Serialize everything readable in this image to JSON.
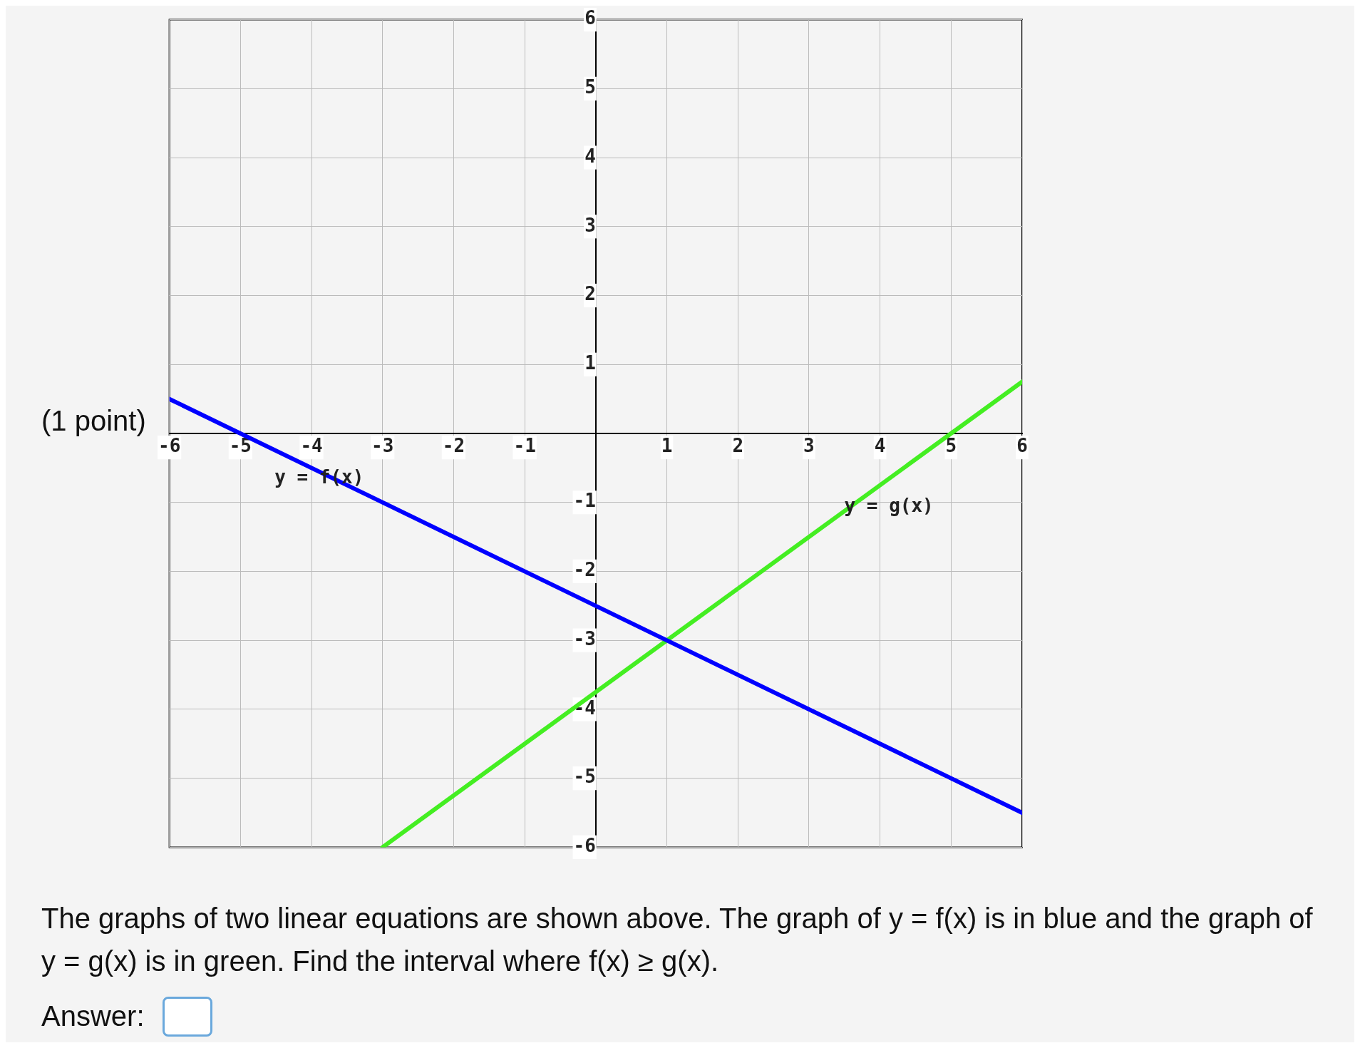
{
  "chart_data": {
    "type": "line",
    "xlim": [
      -6,
      6
    ],
    "ylim": [
      -6,
      6
    ],
    "xticks": [
      -6,
      -5,
      -4,
      -3,
      -2,
      -1,
      1,
      2,
      3,
      4,
      5,
      6
    ],
    "yticks": [
      -6,
      -5,
      -4,
      -3,
      -2,
      -1,
      1,
      2,
      3,
      4,
      5,
      6
    ],
    "grid": true,
    "line_style": "solid",
    "marker": "none",
    "legend": false,
    "series": [
      {
        "name": "y = f(x)",
        "color": "#0000ff",
        "x": [
          -6,
          6
        ],
        "values": [
          0.5,
          -5.5
        ]
      },
      {
        "name": "y = g(x)",
        "color": "#44ee22",
        "x": [
          -3,
          6
        ],
        "values": [
          -6,
          0.75
        ]
      }
    ],
    "annotations": [
      "(1 point)",
      "The graphs of two linear equations are shown above. The graph of y = f(x) is in blue and the graph of y = g(x) is in green. Find the interval where f(x) ≥ g(x).",
      "Answer:"
    ]
  }
}
